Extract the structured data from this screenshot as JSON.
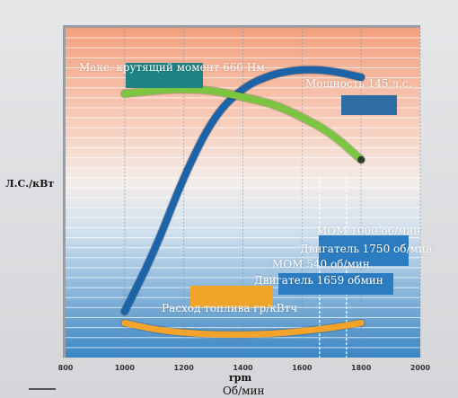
{
  "labels": {
    "max_torque": "Макс. крутящий момент 660 Нм",
    "power": "Мощность 145 л.с.",
    "left_axis": "Л.С./кВт",
    "pto_1000": "МОМ 1000 об/мин",
    "engine_1750": "Двигатель 1750 об/мин",
    "pto_540": "МОМ 540 об/мин",
    "engine_1659": "Двигатель 1659 обмин",
    "fuel": "Расход топлива гр/кВтч",
    "rpm": "rpm",
    "rpm_ru": "Об/мин"
  },
  "colors": {
    "power_curve": "#1d63a8",
    "torque_curve": "#7cc540",
    "fuel_curve": "#f5a42b",
    "torque_box": "#1e8282",
    "power_box": "#2f6ea3",
    "fuel_box": "#f0a52a",
    "blue_box": "#2b7cc0"
  },
  "chart_data": {
    "type": "line",
    "x_range": [
      800,
      2000
    ],
    "x_ticks": [
      800,
      1000,
      1200,
      1400,
      1600,
      1800,
      2000
    ],
    "grid": true,
    "series": [
      {
        "x": [
          1000,
          1100,
          1200,
          1300,
          1400,
          1500,
          1600,
          1700,
          1800
        ],
        "y": [
          0.14,
          0.32,
          0.55,
          0.73,
          0.82,
          0.86,
          0.875,
          0.87,
          0.85
        ]
      },
      {
        "x": [
          1000,
          1100,
          1200,
          1300,
          1400,
          1500,
          1600,
          1700,
          1800
        ],
        "y": [
          0.8,
          0.81,
          0.815,
          0.81,
          0.79,
          0.77,
          0.73,
          0.68,
          0.6
        ]
      },
      {
        "x": [
          1000,
          1100,
          1200,
          1300,
          1400,
          1500,
          1600,
          1700,
          1800
        ],
        "y": [
          0.105,
          0.085,
          0.075,
          0.07,
          0.07,
          0.072,
          0.08,
          0.09,
          0.105
        ]
      }
    ],
    "verticals": [
      1659,
      1750
    ]
  }
}
